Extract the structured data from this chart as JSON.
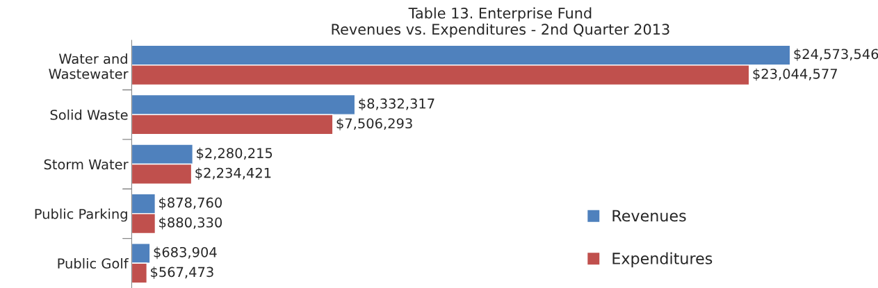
{
  "chart_data": {
    "type": "bar",
    "orientation": "horizontal",
    "title": "Table 13. Enterprise Fund\nRevenues vs. Expenditures - 2nd Quarter 2013",
    "categories": [
      "Water and\nWastewater",
      "Solid Waste",
      "Storm Water",
      "Public Parking",
      "Public Golf"
    ],
    "series": [
      {
        "name": "Revenues",
        "color": "#4f81bd",
        "values": [
          24573546,
          8332317,
          2280215,
          878760,
          683904
        ],
        "value_labels": [
          "$24,573,546",
          "$8,332,317",
          "$2,280,215",
          "$878,760",
          "$683,904"
        ]
      },
      {
        "name": "Expenditures",
        "color": "#c0504d",
        "values": [
          23044577,
          7506293,
          2234421,
          880330,
          567473
        ],
        "value_labels": [
          "$23,044,577",
          "$7,506,293",
          "$2,234,421",
          "$880,330",
          "$567,473"
        ]
      }
    ],
    "legend": "right",
    "grid": false
  }
}
